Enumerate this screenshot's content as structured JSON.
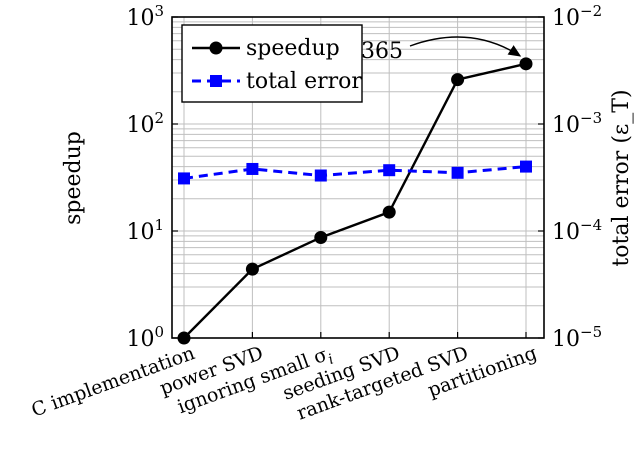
{
  "chart_data": {
    "type": "line",
    "categories": [
      "C implementation",
      "power SVD",
      "ignoring small σ_i",
      "seeding SVD",
      "rank-targeted SVD",
      "partitioning"
    ],
    "series": [
      {
        "name": "speedup",
        "axis": "left",
        "values": [
          1,
          4.4,
          8.7,
          15,
          260,
          365
        ],
        "color": "#000000",
        "marker": "circle",
        "line": "solid"
      },
      {
        "name": "total error",
        "axis": "right",
        "values": [
          0.00031,
          0.00038,
          0.00033,
          0.00037,
          0.00035,
          0.0004
        ],
        "color": "#0000ff",
        "marker": "square",
        "line": "dashed"
      }
    ],
    "ylabel_left": "speedup",
    "ylabel_right": "total error (ε_T)",
    "ylim_left": [
      1,
      1000
    ],
    "ylim_right": [
      1e-05,
      0.01
    ],
    "yscale": "log",
    "left_ticks": [
      {
        "value": 1,
        "base": "10",
        "exp": "0"
      },
      {
        "value": 10,
        "base": "10",
        "exp": "1"
      },
      {
        "value": 100,
        "base": "10",
        "exp": "2"
      },
      {
        "value": 1000,
        "base": "10",
        "exp": "3"
      }
    ],
    "right_ticks": [
      {
        "value": 1e-05,
        "base": "10",
        "exp": "−5"
      },
      {
        "value": 0.0001,
        "base": "10",
        "exp": "−4"
      },
      {
        "value": 0.001,
        "base": "10",
        "exp": "−3"
      },
      {
        "value": 0.01,
        "base": "10",
        "exp": "−2"
      }
    ],
    "grid": true,
    "legend": {
      "position": "top-left",
      "entries": [
        "speedup",
        "total error"
      ]
    },
    "annotation": {
      "text": "365",
      "points_to": "partitioning"
    }
  }
}
